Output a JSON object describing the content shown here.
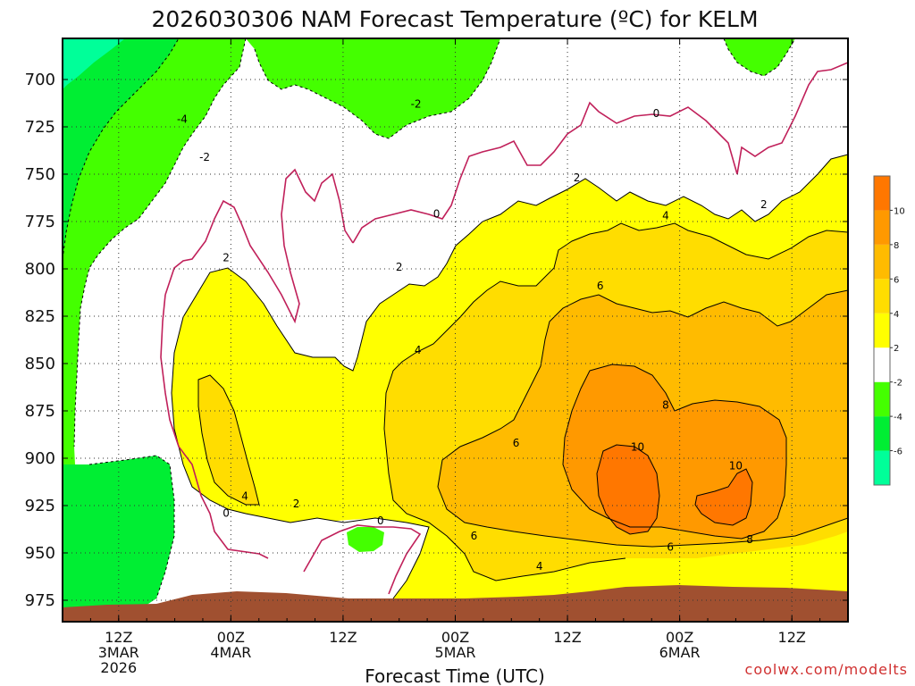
{
  "chart_data": {
    "type": "heatmap",
    "title": "2026030306 NAM Forecast Temperature (ºC) for KELM",
    "xlabel": "Forecast Time (UTC)",
    "ylabel": "",
    "credit": "coolwx.com/modelts",
    "y_axis": {
      "quantity": "pressure (hPa)",
      "inverted": true,
      "range": [
        685,
        980
      ],
      "ticks": [
        700,
        725,
        750,
        775,
        800,
        825,
        850,
        875,
        900,
        925,
        950,
        975
      ]
    },
    "x_axis": {
      "range_hours_from_run": [
        0,
        84
      ],
      "ticks": [
        {
          "hour": 6,
          "lines": [
            "12Z",
            "3MAR",
            "2026"
          ]
        },
        {
          "hour": 18,
          "lines": [
            "00Z",
            "4MAR"
          ]
        },
        {
          "hour": 30,
          "lines": [
            "12Z"
          ]
        },
        {
          "hour": 42,
          "lines": [
            "00Z",
            "5MAR"
          ]
        },
        {
          "hour": 54,
          "lines": [
            "12Z"
          ]
        },
        {
          "hour": 66,
          "lines": [
            "00Z",
            "6MAR"
          ]
        },
        {
          "hour": 78,
          "lines": [
            "12Z"
          ]
        }
      ]
    },
    "grid": true,
    "legend": "right",
    "colorbar": {
      "levels": [
        -8,
        -6,
        -4,
        -2,
        2,
        4,
        6,
        8,
        10,
        12
      ],
      "labels": [
        "-6",
        "-4",
        "-2",
        "2",
        "4",
        "6",
        "8",
        "10"
      ],
      "colors": [
        "#00ff99",
        "#00ee33",
        "#44ff00",
        "#ffffff",
        "#ffff00",
        "#ffdd00",
        "#ffbb00",
        "#ff9900",
        "#ff7700"
      ]
    },
    "contour_labels": [
      {
        "value": "-4",
        "hour": 12.8,
        "p": 721
      },
      {
        "value": "-2",
        "hour": 15.2,
        "p": 741
      },
      {
        "value": "-2",
        "hour": 37.8,
        "p": 713
      },
      {
        "value": "0",
        "hour": 40.0,
        "p": 771
      },
      {
        "value": "0",
        "hour": 63.5,
        "p": 718
      },
      {
        "value": "2",
        "hour": 17.5,
        "p": 794
      },
      {
        "value": "2",
        "hour": 36.0,
        "p": 799
      },
      {
        "value": "2",
        "hour": 55.0,
        "p": 752
      },
      {
        "value": "2",
        "hour": 75.0,
        "p": 766
      },
      {
        "value": "2",
        "hour": 25.0,
        "p": 924
      },
      {
        "value": "0",
        "hour": 17.5,
        "p": 929
      },
      {
        "value": "0",
        "hour": 34.0,
        "p": 933
      },
      {
        "value": "4",
        "hour": 38.0,
        "p": 843
      },
      {
        "value": "4",
        "hour": 19.5,
        "p": 920
      },
      {
        "value": "4",
        "hour": 64.5,
        "p": 772
      },
      {
        "value": "4",
        "hour": 51.0,
        "p": 957
      },
      {
        "value": "6",
        "hour": 57.5,
        "p": 809
      },
      {
        "value": "6",
        "hour": 48.5,
        "p": 892
      },
      {
        "value": "6",
        "hour": 44.0,
        "p": 941
      },
      {
        "value": "6",
        "hour": 65.0,
        "p": 947
      },
      {
        "value": "8",
        "hour": 64.5,
        "p": 872
      },
      {
        "value": "8",
        "hour": 73.5,
        "p": 943
      },
      {
        "value": "10",
        "hour": 61.5,
        "p": 894
      },
      {
        "value": "10",
        "hour": 72.0,
        "p": 904
      }
    ]
  }
}
